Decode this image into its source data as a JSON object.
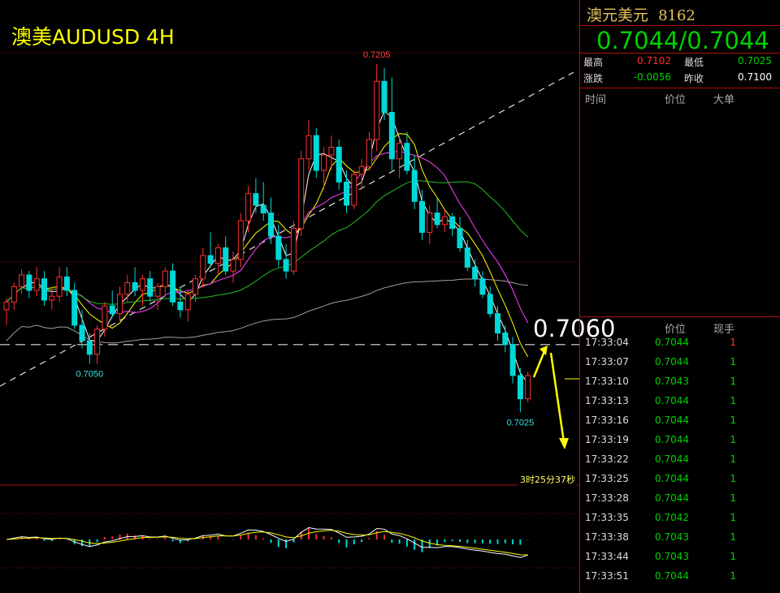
{
  "chart_title": "澳美AUDUSD 4H",
  "annotations": {
    "high_label": "0.7205",
    "low_left_label": "0.7050",
    "low_right_label": "0.7025",
    "key_level": "0.7060",
    "countdown": "3时25分37秒"
  },
  "panel": {
    "symbol_name": "澳元美元",
    "symbol_code": "8162",
    "price_left": "0.7044",
    "price_sep": "/",
    "price_right": "0.7044",
    "stats": {
      "high_label": "最高",
      "high_value": "0.7102",
      "low_label": "最低",
      "low_value": "0.7025",
      "change_label": "涨跌",
      "change_value": "-0.0056",
      "prev_close_label": "昨收",
      "prev_close_value": "0.7100"
    },
    "big_orders_header": {
      "time": "时间",
      "price": "价位",
      "size": "大单"
    },
    "ticks_header": {
      "price": "价位",
      "size": "现手"
    },
    "ticks": [
      {
        "time": "17:33:04",
        "price": "0.7044",
        "size": "1",
        "up": true
      },
      {
        "time": "17:33:07",
        "price": "0.7044",
        "size": "1",
        "up": false
      },
      {
        "time": "17:33:10",
        "price": "0.7043",
        "size": "1",
        "up": false
      },
      {
        "time": "17:33:13",
        "price": "0.7044",
        "size": "1",
        "up": false
      },
      {
        "time": "17:33:16",
        "price": "0.7044",
        "size": "1",
        "up": false
      },
      {
        "time": "17:33:19",
        "price": "0.7044",
        "size": "1",
        "up": false
      },
      {
        "time": "17:33:22",
        "price": "0.7044",
        "size": "1",
        "up": false
      },
      {
        "time": "17:33:25",
        "price": "0.7044",
        "size": "1",
        "up": false
      },
      {
        "time": "17:33:28",
        "price": "0.7044",
        "size": "1",
        "up": false
      },
      {
        "time": "17:33:35",
        "price": "0.7042",
        "size": "1",
        "up": false
      },
      {
        "time": "17:33:38",
        "price": "0.7043",
        "size": "1",
        "up": false
      },
      {
        "time": "17:33:44",
        "price": "0.7043",
        "size": "1",
        "up": false
      },
      {
        "time": "17:33:51",
        "price": "0.7044",
        "size": "1",
        "up": false
      }
    ]
  },
  "colors": {
    "up": "#ff3030",
    "down": "#00d8d8",
    "grid": "#a01010",
    "ma_fast": "#ffffff",
    "ma_mid": "#ffff00",
    "ma_slow": "#ff40ff",
    "ma_60": "#20c020",
    "ma_200": "#a0a0a0",
    "arrow": "#ffff00"
  },
  "chart_data": {
    "type": "candlestick",
    "symbol": "AUDUSD",
    "timeframe": "4H",
    "ylim": [
      0.7018,
      0.7215
    ],
    "candles": [
      [
        0.7078,
        0.7084,
        0.707,
        0.7082
      ],
      [
        0.7082,
        0.7092,
        0.7078,
        0.709
      ],
      [
        0.709,
        0.7099,
        0.7086,
        0.7096
      ],
      [
        0.7096,
        0.7098,
        0.7084,
        0.7088
      ],
      [
        0.7088,
        0.71,
        0.7085,
        0.7094
      ],
      [
        0.7094,
        0.7098,
        0.708,
        0.7083
      ],
      [
        0.7083,
        0.709,
        0.7078,
        0.7085
      ],
      [
        0.7085,
        0.71,
        0.7082,
        0.7095
      ],
      [
        0.7095,
        0.71,
        0.7085,
        0.7088
      ],
      [
        0.7088,
        0.7092,
        0.7068,
        0.707
      ],
      [
        0.707,
        0.7078,
        0.7058,
        0.7062
      ],
      [
        0.7062,
        0.7066,
        0.705,
        0.7055
      ],
      [
        0.7055,
        0.707,
        0.705,
        0.7068
      ],
      [
        0.7068,
        0.7082,
        0.7064,
        0.708
      ],
      [
        0.708,
        0.7088,
        0.7074,
        0.7076
      ],
      [
        0.7076,
        0.709,
        0.7072,
        0.7086
      ],
      [
        0.7086,
        0.7096,
        0.7082,
        0.7092
      ],
      [
        0.7092,
        0.71,
        0.7085,
        0.7088
      ],
      [
        0.7088,
        0.7096,
        0.708,
        0.7094
      ],
      [
        0.7094,
        0.7098,
        0.7082,
        0.7085
      ],
      [
        0.7085,
        0.7092,
        0.7078,
        0.709
      ],
      [
        0.709,
        0.71,
        0.7086,
        0.7098
      ],
      [
        0.7098,
        0.7102,
        0.708,
        0.7082
      ],
      [
        0.7082,
        0.709,
        0.7074,
        0.7078
      ],
      [
        0.7078,
        0.7088,
        0.7072,
        0.7086
      ],
      [
        0.7086,
        0.7096,
        0.7082,
        0.7094
      ],
      [
        0.7094,
        0.711,
        0.709,
        0.7106
      ],
      [
        0.7106,
        0.7118,
        0.71,
        0.7102
      ],
      [
        0.7102,
        0.7112,
        0.7096,
        0.711
      ],
      [
        0.711,
        0.7116,
        0.7096,
        0.7098
      ],
      [
        0.7098,
        0.7108,
        0.7092,
        0.7104
      ],
      [
        0.7104,
        0.7128,
        0.71,
        0.7124
      ],
      [
        0.7124,
        0.7142,
        0.7118,
        0.7138
      ],
      [
        0.7138,
        0.7146,
        0.7128,
        0.7132
      ],
      [
        0.7132,
        0.7144,
        0.7124,
        0.7128
      ],
      [
        0.7128,
        0.7136,
        0.7112,
        0.7116
      ],
      [
        0.7116,
        0.7122,
        0.71,
        0.7104
      ],
      [
        0.7104,
        0.7112,
        0.7094,
        0.7098
      ],
      [
        0.7098,
        0.7124,
        0.7096,
        0.712
      ],
      [
        0.712,
        0.716,
        0.7116,
        0.7156
      ],
      [
        0.7156,
        0.7176,
        0.715,
        0.7168
      ],
      [
        0.7168,
        0.7172,
        0.7146,
        0.715
      ],
      [
        0.715,
        0.7162,
        0.714,
        0.7158
      ],
      [
        0.7158,
        0.7168,
        0.715,
        0.7162
      ],
      [
        0.7162,
        0.7166,
        0.714,
        0.7144
      ],
      [
        0.7144,
        0.715,
        0.7128,
        0.7132
      ],
      [
        0.7132,
        0.715,
        0.713,
        0.7148
      ],
      [
        0.7148,
        0.7156,
        0.714,
        0.7152
      ],
      [
        0.7152,
        0.717,
        0.715,
        0.7166
      ],
      [
        0.7166,
        0.7205,
        0.716,
        0.7196
      ],
      [
        0.7196,
        0.7203,
        0.7176,
        0.718
      ],
      [
        0.718,
        0.7198,
        0.715,
        0.7156
      ],
      [
        0.7156,
        0.7168,
        0.7146,
        0.7164
      ],
      [
        0.7164,
        0.717,
        0.7148,
        0.715
      ],
      [
        0.715,
        0.7158,
        0.713,
        0.7134
      ],
      [
        0.7134,
        0.714,
        0.7114,
        0.7118
      ],
      [
        0.7118,
        0.7132,
        0.7112,
        0.7128
      ],
      [
        0.7128,
        0.7136,
        0.712,
        0.7122
      ],
      [
        0.7122,
        0.713,
        0.7118,
        0.7126
      ],
      [
        0.7126,
        0.7128,
        0.7116,
        0.712
      ],
      [
        0.712,
        0.7126,
        0.7108,
        0.711
      ],
      [
        0.711,
        0.7114,
        0.7098,
        0.71
      ],
      [
        0.71,
        0.7104,
        0.709,
        0.7094
      ],
      [
        0.7094,
        0.7098,
        0.7084,
        0.7086
      ],
      [
        0.7086,
        0.709,
        0.7074,
        0.7076
      ],
      [
        0.7076,
        0.708,
        0.7062,
        0.7066
      ],
      [
        0.7066,
        0.707,
        0.7056,
        0.706
      ],
      [
        0.706,
        0.7064,
        0.704,
        0.7044
      ],
      [
        0.7044,
        0.7048,
        0.7025,
        0.7032
      ],
      [
        0.7032,
        0.7046,
        0.703,
        0.7044
      ]
    ],
    "levels": {
      "high": 0.7205,
      "low_left": 0.705,
      "low_right": 0.7025,
      "dashed_line": 0.706
    }
  }
}
